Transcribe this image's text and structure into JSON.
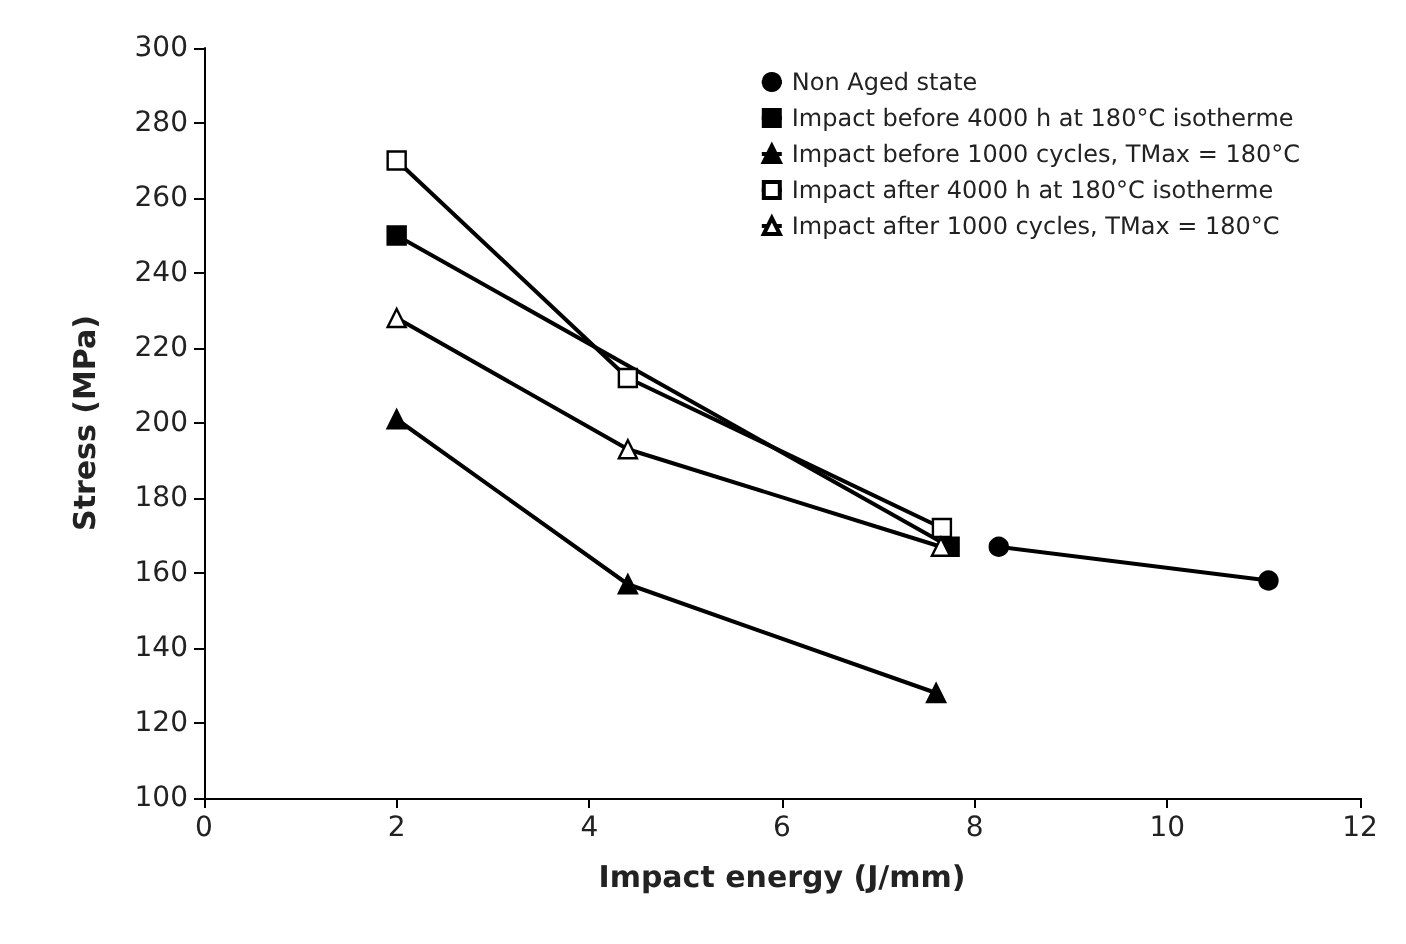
{
  "chart_data": {
    "type": "line",
    "xlabel": "Impact energy (J/mm)",
    "ylabel": "Stress (MPa)",
    "xlim": [
      0,
      12
    ],
    "xticks": [
      0,
      2,
      4,
      6,
      8,
      10,
      12
    ],
    "ylim": [
      100,
      300
    ],
    "yticks": [
      100,
      120,
      140,
      160,
      180,
      200,
      220,
      240,
      260,
      280,
      300
    ],
    "grid": false,
    "legend": "top right",
    "line_style": "solid",
    "series": [
      {
        "name": "Non Aged state",
        "color": "#000000",
        "marker": "circle",
        "x": [
          8.25,
          11.05
        ],
        "values": [
          167,
          158
        ]
      },
      {
        "name": "Impact before 4000 h at 180°C isotherme",
        "color": "#000000",
        "marker": "square",
        "x": [
          2,
          7.74
        ],
        "values": [
          250,
          167
        ]
      },
      {
        "name": "Impact before 1000 cycles, TMax = 180°C",
        "color": "#000000",
        "marker": "triangle",
        "x": [
          2,
          4.4,
          7.6
        ],
        "values": [
          201,
          157,
          128
        ]
      },
      {
        "name": "Impact after 4000 h at 180°C isotherme",
        "color": "#ffffff",
        "marker": "square",
        "x": [
          2,
          4.4,
          7.66
        ],
        "values": [
          270,
          212,
          172
        ]
      },
      {
        "name": "Impact after 1000 cycles, TMax = 180°C",
        "color": "#ffffff",
        "marker": "triangle",
        "x": [
          2,
          4.4,
          7.65
        ],
        "values": [
          228,
          193,
          167
        ]
      }
    ]
  }
}
